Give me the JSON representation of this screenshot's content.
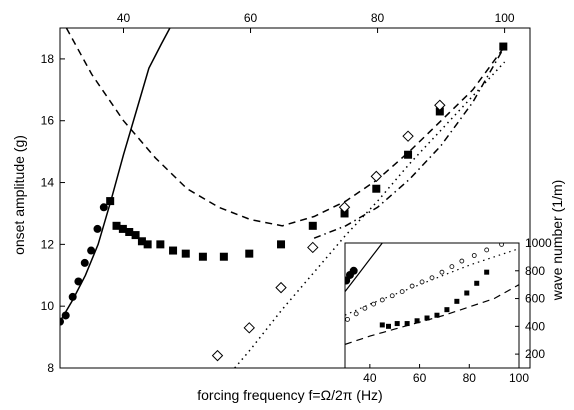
{
  "chart_data": [
    {
      "type": "scatter",
      "xlabel": "forcing frequency f=Ω/2π (Hz)",
      "ylabel": "onset amplitude (g)",
      "xlim": [
        30,
        104
      ],
      "ylim": [
        8,
        19
      ],
      "xticks_top": [
        40,
        60,
        80,
        100
      ],
      "yticks": [
        8,
        10,
        12,
        14,
        16,
        18
      ],
      "grid": false,
      "series": [
        {
          "marker": "filled-circle",
          "x": [
            30.0,
            30.9,
            32.0,
            32.9,
            33.9,
            34.9,
            35.9,
            36.9
          ],
          "y": [
            9.5,
            9.7,
            10.3,
            10.8,
            11.4,
            11.8,
            12.5,
            13.2
          ]
        },
        {
          "marker": "filled-square",
          "x": [
            37.9,
            38.9,
            39.9,
            40.9,
            41.9,
            42.9,
            43.8,
            45.8,
            47.8,
            49.8,
            52.5,
            55.8,
            59.8,
            64.8,
            69.8,
            74.8,
            79.8,
            84.8,
            89.8,
            99.8
          ],
          "y": [
            13.4,
            12.6,
            12.5,
            12.4,
            12.3,
            12.1,
            12.0,
            12.0,
            11.8,
            11.7,
            11.6,
            11.6,
            11.7,
            12.0,
            12.6,
            13.0,
            13.8,
            14.9,
            16.3,
            18.4
          ]
        },
        {
          "marker": "open-diamond",
          "x": [
            54.8,
            59.8,
            64.8,
            69.8,
            74.8,
            79.8,
            84.8,
            89.8
          ],
          "y": [
            8.4,
            9.3,
            10.6,
            11.9,
            13.2,
            14.2,
            15.5,
            16.5
          ]
        },
        {
          "line": "solid",
          "x": [
            30,
            32,
            34,
            36,
            38,
            40,
            42,
            44,
            46,
            47.3
          ],
          "y": [
            9.5,
            10.2,
            11.0,
            12.0,
            13.4,
            14.9,
            16.3,
            17.7,
            18.5,
            19.0
          ]
        },
        {
          "line": "dashed",
          "x": [
            31,
            35,
            40,
            45,
            50,
            55,
            60,
            65,
            70,
            75,
            80,
            85,
            90,
            95,
            100
          ],
          "y": [
            19.0,
            17.5,
            16.0,
            14.8,
            13.8,
            13.2,
            12.8,
            12.6,
            12.9,
            13.4,
            14.1,
            15.0,
            16.0,
            17.0,
            18.4
          ]
        },
        {
          "line": "dotted",
          "x": [
            57.5,
            60,
            65,
            70,
            75,
            80,
            85,
            90,
            95,
            100
          ],
          "y": [
            8.0,
            8.6,
            9.9,
            11.1,
            12.3,
            13.4,
            14.6,
            15.7,
            16.8,
            17.9
          ]
        },
        {
          "line": "dash-dot",
          "x": [
            70,
            75,
            80,
            85,
            90,
            95,
            100
          ],
          "y": [
            12.2,
            12.6,
            13.2,
            14.1,
            15.2,
            16.6,
            18.4
          ]
        }
      ]
    },
    {
      "type": "scatter",
      "position": "inset bottom-right",
      "ylabel": "wave number (1/m)",
      "xlim": [
        30,
        100
      ],
      "ylim": [
        100,
        1000
      ],
      "xticks": [
        40,
        60,
        80,
        100
      ],
      "yticks": [
        200,
        400,
        600,
        800,
        1000
      ],
      "grid": false,
      "series": [
        {
          "marker": "filled-circle",
          "x": [
            30.5,
            32,
            33.5
          ],
          "y": [
            730,
            770,
            800
          ]
        },
        {
          "marker": "open-circle",
          "x": [
            31,
            34.5,
            38,
            41.5,
            45,
            49,
            53,
            57,
            61,
            65,
            69,
            73,
            77,
            82,
            87,
            93
          ],
          "y": [
            450,
            490,
            530,
            560,
            590,
            620,
            650,
            690,
            720,
            750,
            790,
            830,
            870,
            910,
            950,
            990
          ]
        },
        {
          "marker": "filled-square",
          "x": [
            45,
            47.5,
            51,
            55,
            59,
            63,
            67,
            71,
            75,
            79,
            83,
            87
          ],
          "y": [
            410,
            400,
            420,
            420,
            440,
            460,
            480,
            520,
            580,
            640,
            710,
            790
          ]
        },
        {
          "line": "solid",
          "x": [
            30,
            33,
            36,
            39,
            42,
            45
          ],
          "y": [
            650,
            720,
            790,
            860,
            930,
            1000
          ]
        },
        {
          "line": "dotted",
          "x": [
            30,
            40,
            50,
            60,
            70,
            80,
            90,
            100
          ],
          "y": [
            480,
            560,
            630,
            700,
            770,
            840,
            900,
            960
          ]
        },
        {
          "line": "dashed",
          "x": [
            30,
            40,
            50,
            60,
            70,
            80,
            90,
            100
          ],
          "y": [
            270,
            330,
            380,
            430,
            480,
            540,
            600,
            700
          ]
        }
      ]
    }
  ]
}
